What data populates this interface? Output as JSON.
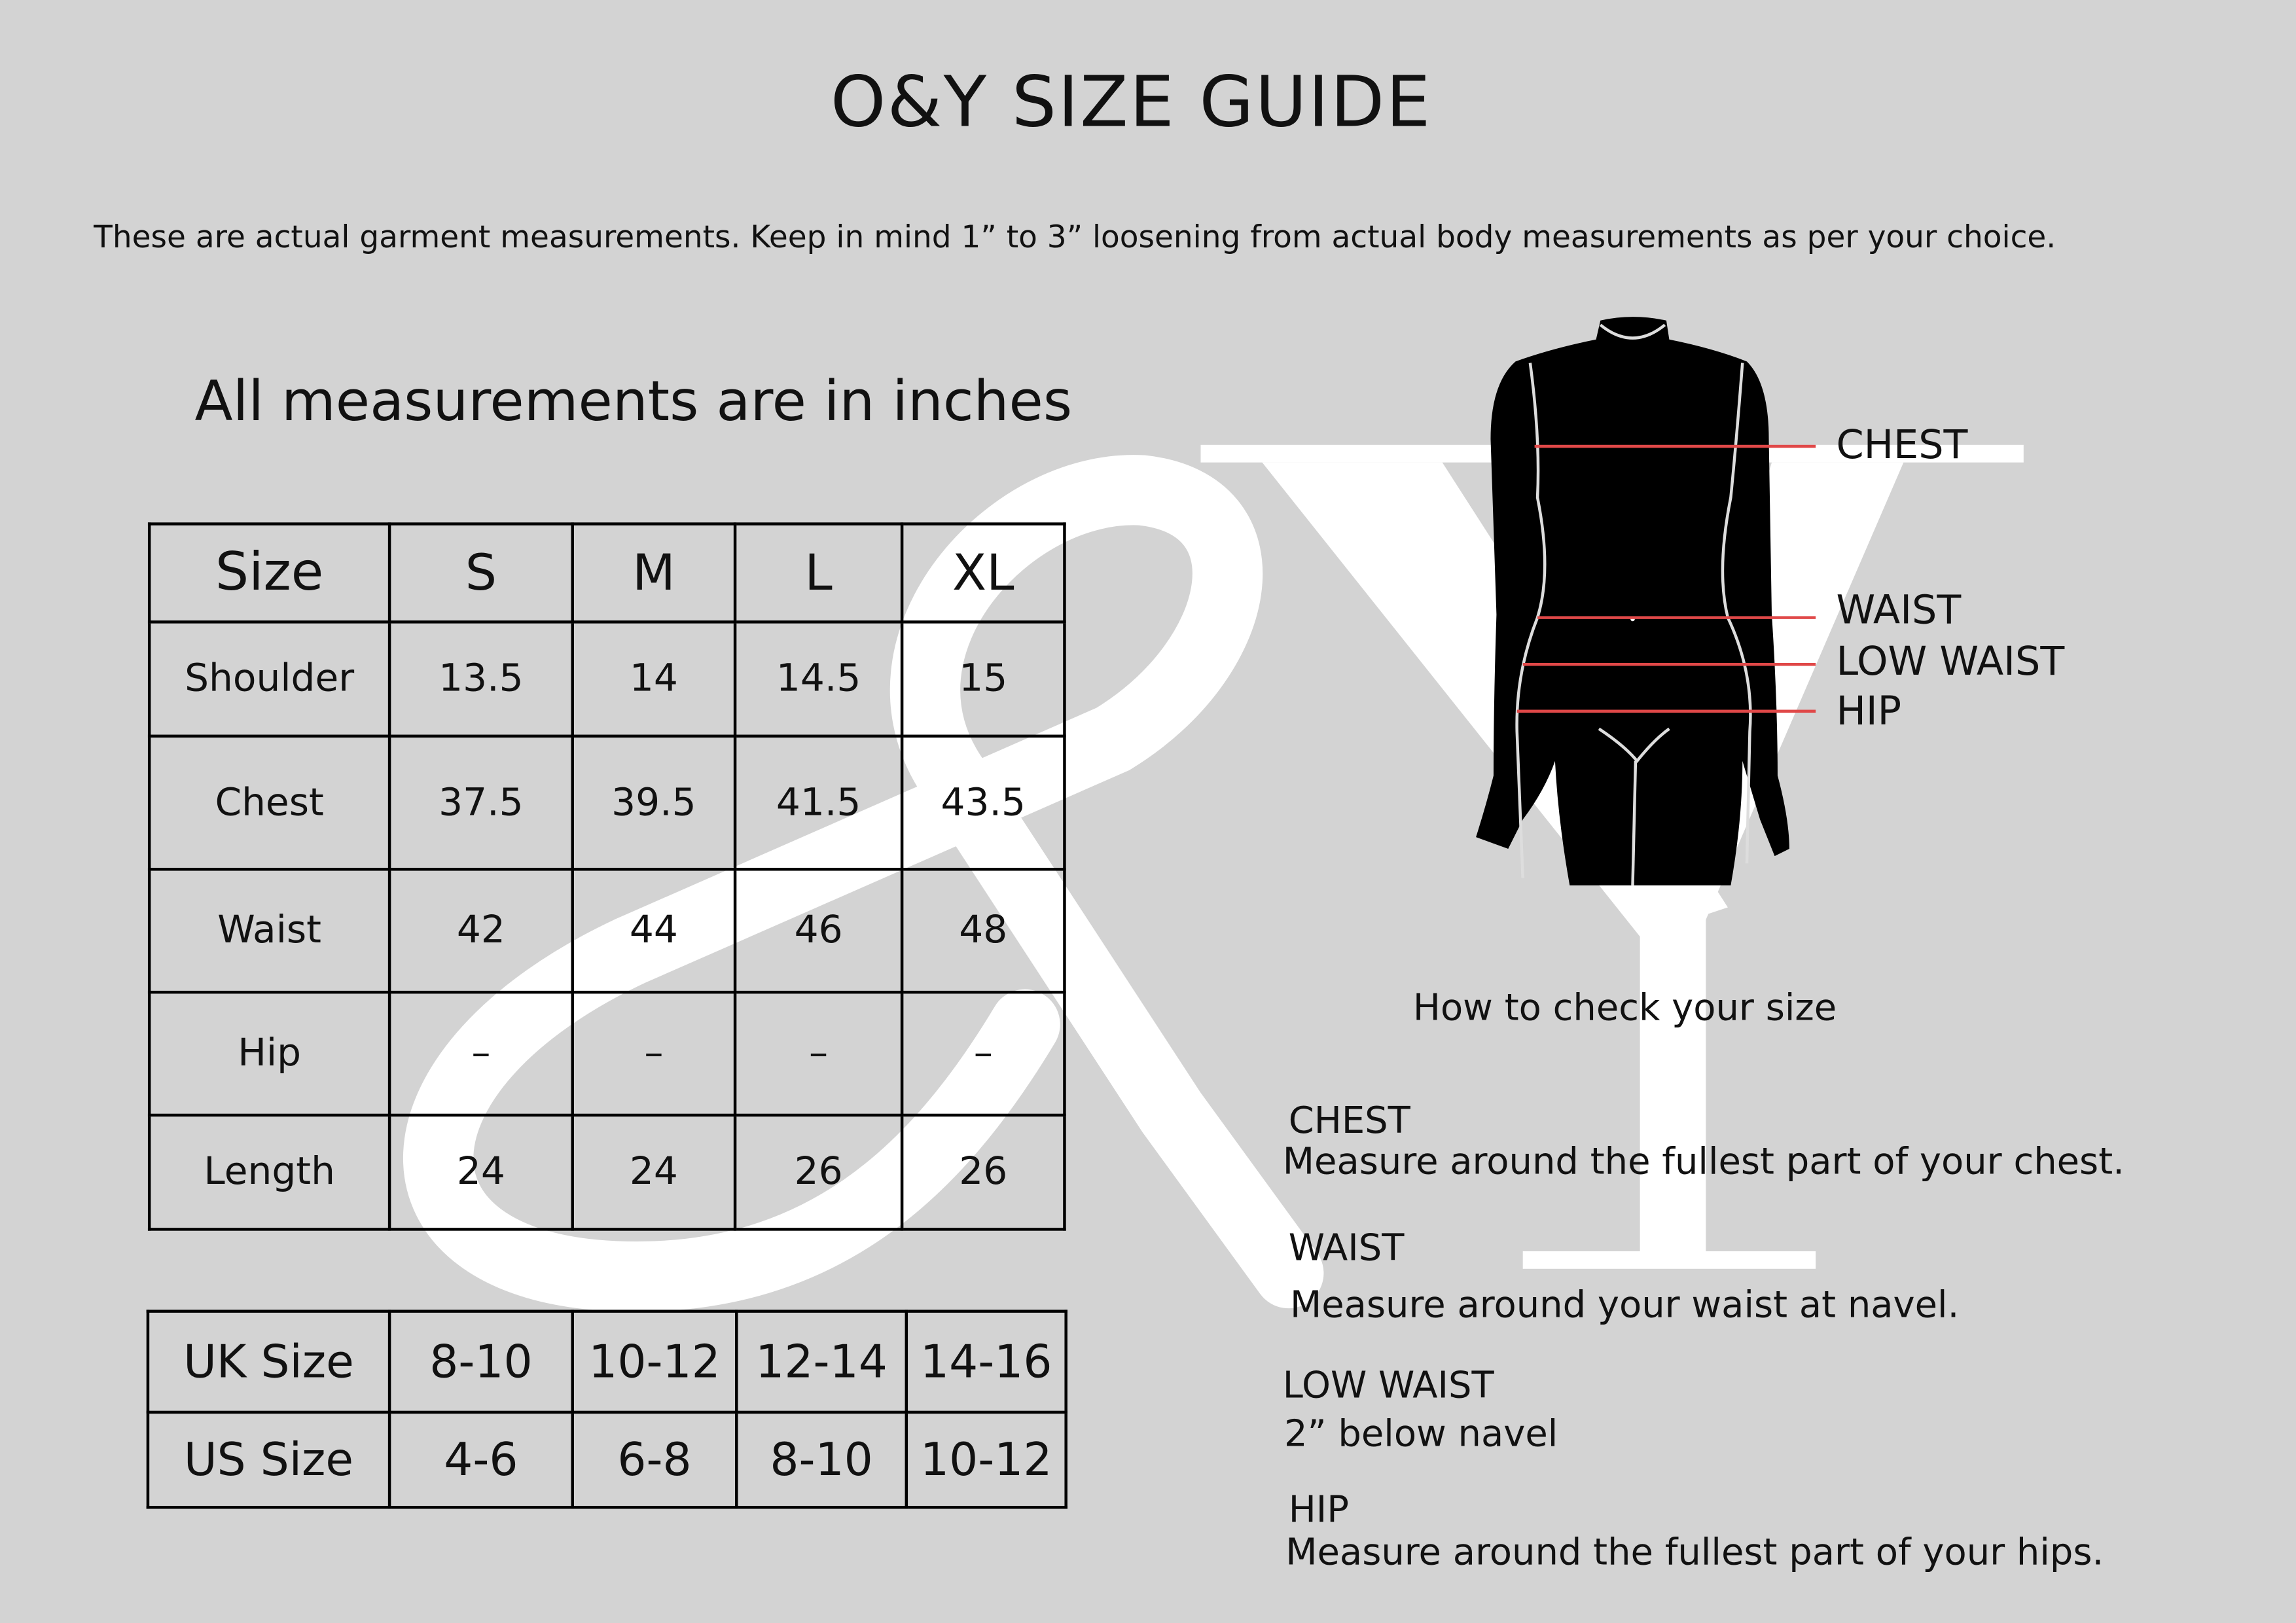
{
  "title": "O&Y SIZE GUIDE",
  "subtitle": "These are actual garment measurements. Keep in mind 1” to 3” loosening from actual body measurements as per your choice.",
  "units_note": "All measurements are in inches",
  "watermark": "&Y",
  "size_table": {
    "header": [
      "Size",
      "S",
      "M",
      "L",
      "XL"
    ],
    "rows": [
      [
        "Shoulder",
        "13.5",
        "14",
        "14.5",
        "15"
      ],
      [
        "Chest",
        "37.5",
        "39.5",
        "41.5",
        "43.5"
      ],
      [
        "Waist",
        "42",
        "44",
        "46",
        "48"
      ],
      [
        "Hip",
        "–",
        "–",
        "–",
        "–"
      ],
      [
        "Length",
        "24",
        "24",
        "26",
        "26"
      ]
    ]
  },
  "conversion_table": {
    "rows": [
      [
        "UK Size",
        "8-10",
        "10-12",
        "12-14",
        "14-16"
      ],
      [
        "US Size",
        "4-6",
        "6-8",
        "8-10",
        "10-12"
      ]
    ]
  },
  "figure_labels": {
    "chest": "CHEST",
    "waist": "WAIST",
    "low_waist": "LOW WAIST",
    "hip": "HIP"
  },
  "how_to": {
    "heading": "How to check your size",
    "items": [
      {
        "title": "CHEST",
        "text": "Measure around the fullest part of your chest."
      },
      {
        "title": "WAIST",
        "text": "Measure around your waist at navel."
      },
      {
        "title": "LOW WAIST",
        "text": "2” below navel"
      },
      {
        "title": "HIP",
        "text": "Measure around the fullest part of your hips."
      }
    ]
  },
  "colors": {
    "background": "#d3d3d3",
    "watermark": "#ffffff",
    "measure_line": "#e04848"
  }
}
